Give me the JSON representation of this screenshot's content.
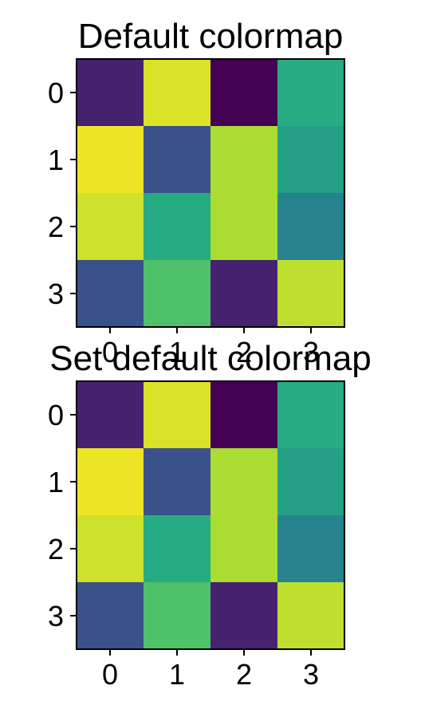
{
  "chart_data": [
    {
      "type": "heatmap",
      "title": "Default colormap",
      "colormap": "viridis",
      "x_ticks": [
        "0",
        "1",
        "2",
        "3"
      ],
      "y_ticks": [
        "0",
        "1",
        "2",
        "3"
      ],
      "values": [
        [
          0.1,
          0.95,
          0.0,
          0.62
        ],
        [
          0.98,
          0.25,
          0.88,
          0.57
        ],
        [
          0.93,
          0.62,
          0.88,
          0.45
        ],
        [
          0.25,
          0.72,
          0.1,
          0.91
        ]
      ]
    },
    {
      "type": "heatmap",
      "title": "Set default colormap",
      "colormap": "viridis",
      "x_ticks": [
        "0",
        "1",
        "2",
        "3"
      ],
      "y_ticks": [
        "0",
        "1",
        "2",
        "3"
      ],
      "values": [
        [
          0.1,
          0.95,
          0.0,
          0.62
        ],
        [
          0.98,
          0.25,
          0.88,
          0.57
        ],
        [
          0.93,
          0.62,
          0.88,
          0.45
        ],
        [
          0.25,
          0.72,
          0.1,
          0.91
        ]
      ]
    }
  ]
}
